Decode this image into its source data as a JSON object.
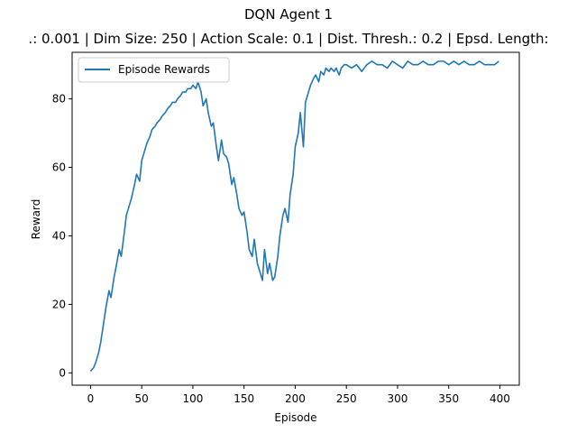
{
  "chart_data": {
    "type": "line",
    "title": "DQN Agent 1",
    "subtitle": ".: 0.001 | Dim Size: 250 | Action Scale: 0.1 | Dist. Thresh.: 0.2 | Epsd. Length:",
    "xlabel": "Episode",
    "ylabel": "Reward",
    "xlim": [
      -18,
      419
    ],
    "ylim": [
      -3.6,
      93.6
    ],
    "xticks": [
      0,
      50,
      100,
      150,
      200,
      250,
      300,
      350,
      400
    ],
    "yticks": [
      0,
      20,
      40,
      60,
      80
    ],
    "grid": false,
    "legend_position": "top-left",
    "series": [
      {
        "name": "Episode Rewards",
        "color": "#1f77b4",
        "x": [
          0,
          3,
          5,
          8,
          10,
          12,
          15,
          18,
          20,
          23,
          25,
          28,
          30,
          33,
          35,
          38,
          40,
          43,
          45,
          48,
          50,
          53,
          55,
          58,
          60,
          63,
          65,
          68,
          70,
          73,
          75,
          78,
          80,
          83,
          85,
          88,
          90,
          93,
          95,
          98,
          100,
          103,
          105,
          108,
          110,
          113,
          115,
          118,
          120,
          123,
          125,
          128,
          130,
          133,
          135,
          138,
          140,
          143,
          145,
          148,
          150,
          153,
          155,
          158,
          160,
          163,
          165,
          168,
          170,
          173,
          175,
          178,
          180,
          183,
          185,
          188,
          190,
          193,
          195,
          198,
          200,
          203,
          205,
          208,
          210,
          213,
          215,
          218,
          220,
          223,
          225,
          228,
          230,
          233,
          235,
          238,
          240,
          243,
          245,
          248,
          250,
          255,
          260,
          265,
          270,
          275,
          280,
          285,
          290,
          295,
          300,
          305,
          310,
          315,
          320,
          325,
          330,
          335,
          340,
          345,
          350,
          355,
          360,
          365,
          370,
          375,
          380,
          385,
          390,
          395,
          399
        ],
        "values": [
          0.5,
          1.5,
          3,
          6,
          9,
          13,
          19,
          24,
          22,
          28,
          31,
          36,
          34,
          41,
          46,
          49,
          51,
          55,
          58,
          56,
          62,
          65,
          67,
          69,
          71,
          72,
          73,
          74,
          75,
          76,
          77,
          78,
          79,
          79,
          80,
          81,
          82,
          82,
          83,
          83,
          84,
          83,
          85,
          82,
          78,
          80,
          76,
          72,
          73,
          66,
          62,
          68,
          64,
          63,
          61,
          55,
          57,
          52,
          48,
          46,
          47,
          41,
          36,
          34,
          39,
          32,
          30,
          27,
          36,
          29,
          32,
          27,
          28,
          34,
          40,
          46,
          48,
          44,
          52,
          58,
          66,
          70,
          76,
          66,
          79,
          82,
          84,
          86,
          87,
          85,
          88,
          87,
          89,
          88,
          89,
          88,
          89,
          87,
          89,
          90,
          90,
          89,
          90,
          88,
          90,
          91,
          90,
          90,
          89,
          91,
          90,
          89,
          91,
          90,
          90,
          91,
          90,
          90,
          91,
          91,
          90,
          91,
          90,
          91,
          90,
          90,
          91,
          90,
          90,
          90,
          91
        ]
      }
    ]
  }
}
